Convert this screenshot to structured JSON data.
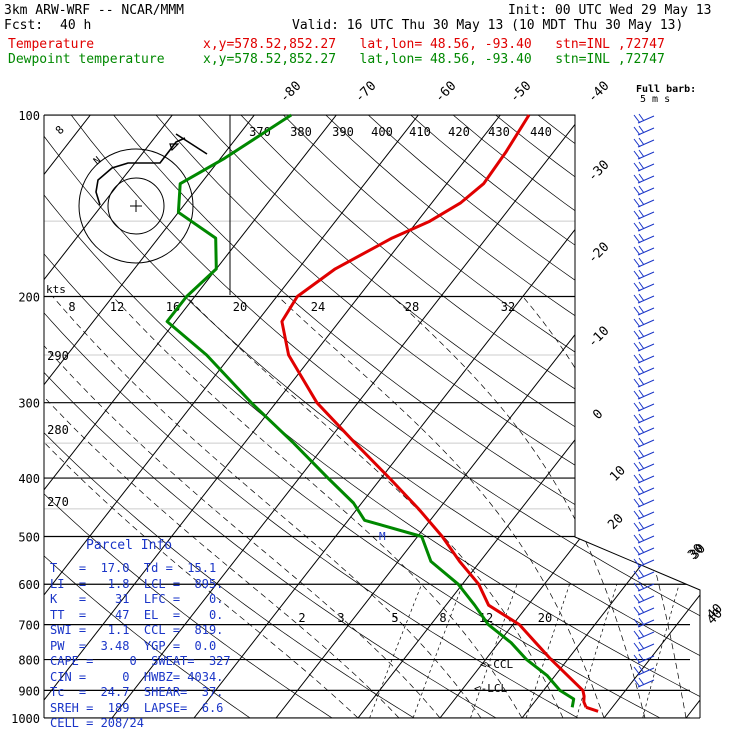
{
  "header": {
    "model": "3km ARW-WRF -- NCAR/MMM",
    "init": "Init: 00 UTC Wed 29 May 13",
    "fcst_label": "Fcst:",
    "fcst_value": "40 h",
    "valid": "Valid: 16 UTC Thu 30 May 13 (10 MDT Thu 30 May 13)",
    "temp_label": "Temperature",
    "dew_label": "Dewpoint temperature",
    "location_info": "x,y=578.52,852.27   lat,lon= 48.56, -93.40   stn=INL ,72747",
    "barb_title": "Full barb:",
    "barb_unit": "5 m s"
  },
  "colors": {
    "temperature": "#e00000",
    "dewpoint": "#008800",
    "parcel": "#1a35c8",
    "grid": "#000000",
    "background": "#ffffff"
  },
  "chart_data": {
    "type": "line",
    "subtype": "skew-t log-p",
    "pressure_ticks": [
      100,
      200,
      300,
      400,
      500,
      600,
      700,
      800,
      900,
      1000
    ],
    "isotherm_labels": [
      "-80",
      "-70",
      "-60",
      "-50",
      "-40",
      "-30",
      "-20",
      "-10",
      "0",
      "10",
      "20",
      "30",
      "40"
    ],
    "theta_labels_top": [
      "370",
      "380",
      "390",
      "400",
      "410",
      "420",
      "430",
      "440"
    ],
    "theta_labels_side": [
      "290",
      "280",
      "270"
    ],
    "hodograph_speed_labels": [
      "8",
      "12",
      "16",
      "20",
      "24",
      "28",
      "32"
    ],
    "hodograph_unit": "kts",
    "mixing_ratio_labels": [
      "2",
      "3",
      "5",
      "8",
      "12",
      "20"
    ],
    "annotations": [
      "M",
      "<-CCL",
      "<-LCL"
    ],
    "series": [
      {
        "name": "Temperature",
        "points": [
          {
            "p": 960,
            "t": 16.8
          },
          {
            "p": 940,
            "t": 16.0
          },
          {
            "p": 920,
            "t": 15.5
          },
          {
            "p": 900,
            "t": 14.8
          },
          {
            "p": 850,
            "t": 11.5
          },
          {
            "p": 800,
            "t": 8.0
          },
          {
            "p": 750,
            "t": 4.5
          },
          {
            "p": 700,
            "t": 0.8
          },
          {
            "p": 650,
            "t": -4.8
          },
          {
            "p": 600,
            "t": -8.0
          },
          {
            "p": 550,
            "t": -12.5
          },
          {
            "p": 500,
            "t": -17.0
          },
          {
            "p": 450,
            "t": -22.5
          },
          {
            "p": 400,
            "t": -29.0
          },
          {
            "p": 350,
            "t": -36.5
          },
          {
            "p": 300,
            "t": -45.0
          },
          {
            "p": 250,
            "t": -53.0
          },
          {
            "p": 220,
            "t": -57.0
          },
          {
            "p": 200,
            "t": -57.5
          },
          {
            "p": 180,
            "t": -55.5
          },
          {
            "p": 160,
            "t": -51.5
          },
          {
            "p": 150,
            "t": -48.5
          },
          {
            "p": 140,
            "t": -46.5
          },
          {
            "p": 130,
            "t": -45.5
          },
          {
            "p": 115,
            "t": -45.8
          },
          {
            "p": 100,
            "t": -46.5
          }
        ]
      },
      {
        "name": "Dewpoint temperature",
        "points": [
          {
            "p": 960,
            "t": 15.1
          },
          {
            "p": 930,
            "t": 14.5
          },
          {
            "p": 900,
            "t": 12.0
          },
          {
            "p": 850,
            "t": 9.0
          },
          {
            "p": 800,
            "t": 5.0
          },
          {
            "p": 750,
            "t": 1.5
          },
          {
            "p": 700,
            "t": -3.0
          },
          {
            "p": 650,
            "t": -6.5
          },
          {
            "p": 600,
            "t": -10.5
          },
          {
            "p": 550,
            "t": -16.0
          },
          {
            "p": 500,
            "t": -19.5
          },
          {
            "p": 470,
            "t": -28.0
          },
          {
            "p": 440,
            "t": -31.0
          },
          {
            "p": 400,
            "t": -36.5
          },
          {
            "p": 350,
            "t": -44.0
          },
          {
            "p": 300,
            "t": -53.0
          },
          {
            "p": 250,
            "t": -63.0
          },
          {
            "p": 220,
            "t": -71.0
          },
          {
            "p": 200,
            "t": -71.0
          },
          {
            "p": 180,
            "t": -70.0
          },
          {
            "p": 160,
            "t": -73.0
          },
          {
            "p": 145,
            "t": -80.0
          },
          {
            "p": 130,
            "t": -82.5
          },
          {
            "p": 118,
            "t": -79.5
          },
          {
            "p": 100,
            "t": -75.5
          }
        ]
      }
    ]
  },
  "parcel_info": {
    "title": "Parcel Info",
    "rows": [
      "T   =  17.0  Td =  15.1",
      "LI  =   1.8  LCL =  895.",
      "K   =    31  LFC =    0.",
      "TT  =    47  EL  =    0.",
      "SWI =   1.1  CCL =  819.",
      "PW  =  3.48  YGP =  0.0",
      "CAPE =     0  SWEAT=  327",
      "CIN =     0  HWBZ= 4034.",
      "Tc  =  24.7  SHEAR=  37.",
      "SREH =  189  LAPSE=  6.6",
      "CELL = 208/24"
    ]
  },
  "wind_scale_labels": [
    "30",
    "40"
  ]
}
